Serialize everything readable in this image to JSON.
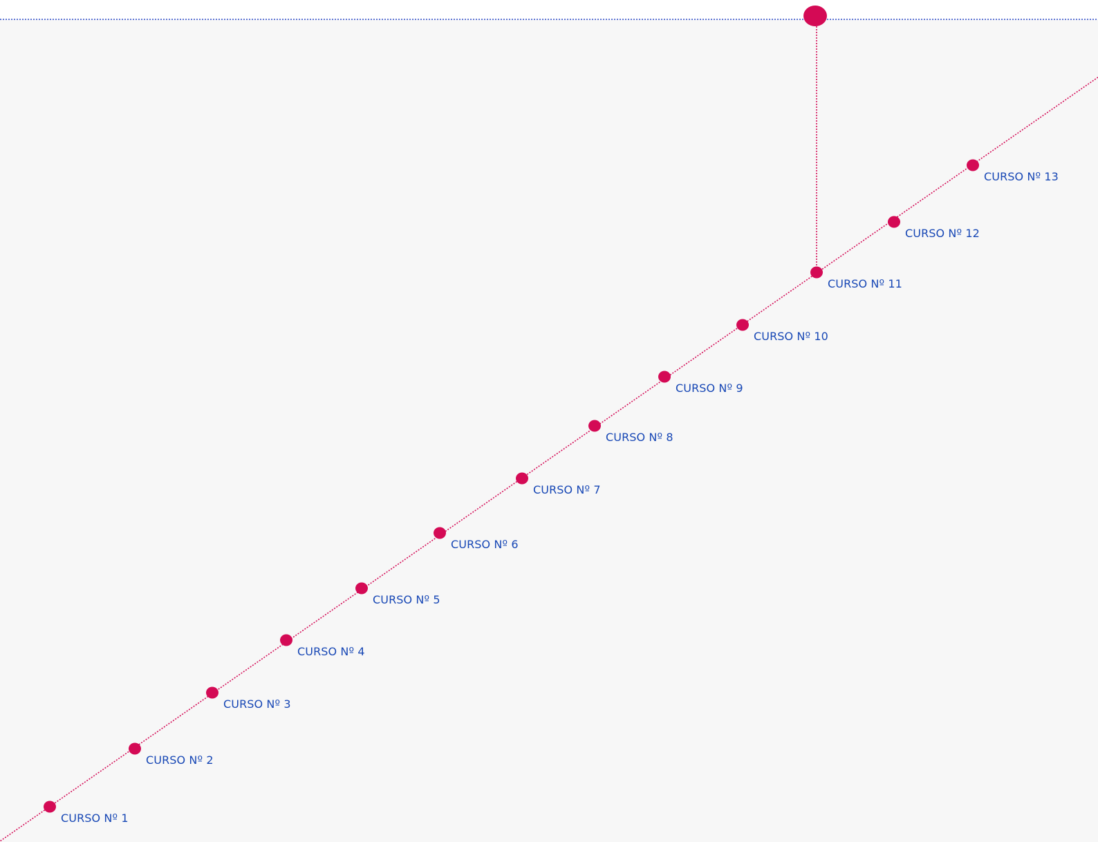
{
  "colors": {
    "background": "#f7f7f7",
    "top_band": "#ffffff",
    "accent": "#d40a55",
    "label": "#1747b5",
    "top_line": "#2b48c9"
  },
  "nodes": [
    {
      "label": "CURSO Nº 1"
    },
    {
      "label": "CURSO Nº 2"
    },
    {
      "label": "CURSO Nº 3"
    },
    {
      "label": "CURSO Nº 4"
    },
    {
      "label": "CURSO Nº 5"
    },
    {
      "label": "CURSO Nº 6"
    },
    {
      "label": "CURSO Nº 7"
    },
    {
      "label": "CURSO Nº 8"
    },
    {
      "label": "CURSO Nº 9"
    },
    {
      "label": "CURSO Nº 10"
    },
    {
      "label": "CURSO Nº 11"
    },
    {
      "label": "CURSO Nº 12"
    },
    {
      "label": "CURSO Nº 13"
    }
  ],
  "current_node_index": 10
}
